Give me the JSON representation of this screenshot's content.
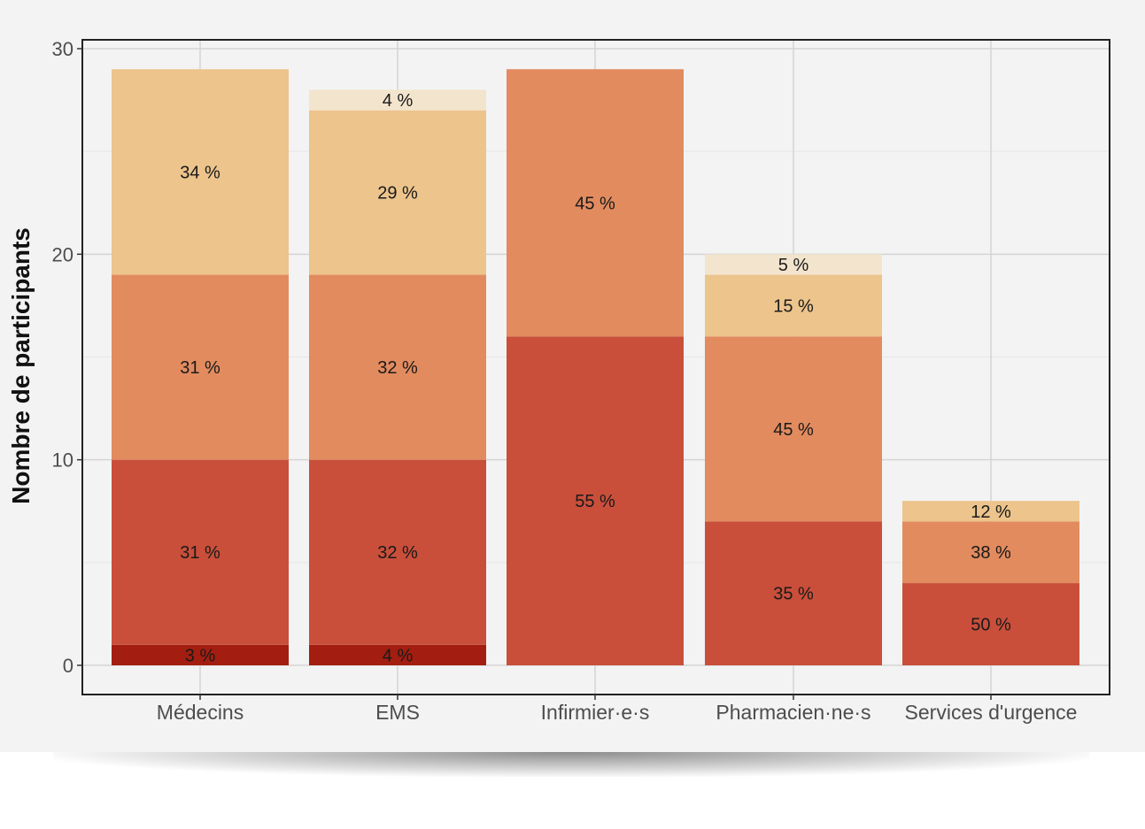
{
  "chart_data": {
    "type": "bar",
    "stacked": true,
    "title": "",
    "xlabel": "",
    "ylabel": "Nombre de participants",
    "ylim": [
      0,
      30
    ],
    "yticks": [
      0,
      10,
      20,
      30
    ],
    "grid": true,
    "categories": [
      "Médecins",
      "EMS",
      "Infirmier·e·s",
      "Pharmacien·ne·s",
      "Services d'urgence"
    ],
    "series": [
      {
        "color": "#a31e10",
        "values": [
          1,
          1,
          0,
          0,
          0
        ],
        "labels": [
          "3 %",
          "4 %",
          "",
          "",
          ""
        ]
      },
      {
        "color": "#c94f3b",
        "values": [
          9,
          9,
          16,
          7,
          4
        ],
        "labels": [
          "31 %",
          "32 %",
          "55 %",
          "35 %",
          "50 %"
        ]
      },
      {
        "color": "#e28b5f",
        "values": [
          9,
          9,
          13,
          9,
          3
        ],
        "labels": [
          "31 %",
          "32 %",
          "45 %",
          "45 %",
          "38 %"
        ]
      },
      {
        "color": "#ecc48c",
        "values": [
          10,
          8,
          0,
          3,
          1
        ],
        "labels": [
          "34 %",
          "29 %",
          "",
          "15 %",
          "12 %"
        ]
      },
      {
        "color": "#f3e4cd",
        "values": [
          0,
          1,
          0,
          1,
          0
        ],
        "labels": [
          "",
          "4 %",
          "",
          "5 %",
          ""
        ]
      }
    ]
  }
}
